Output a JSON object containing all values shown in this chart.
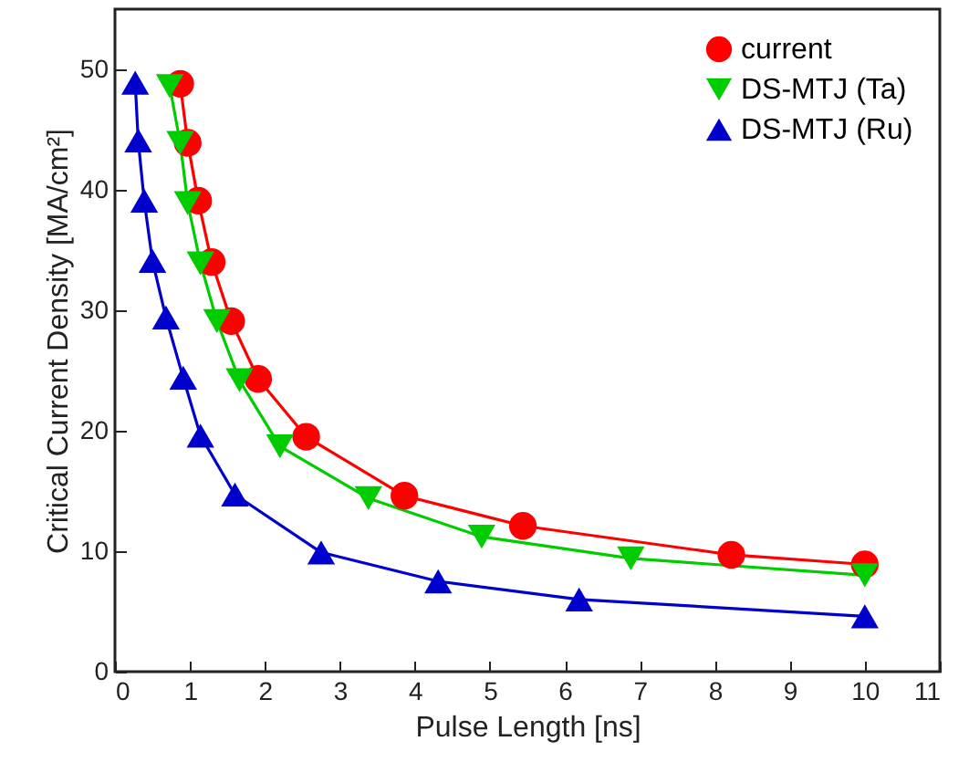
{
  "chart_data": {
    "type": "line",
    "xlabel": "Pulse Length [ns]",
    "ylabel": "Critical Current Density [MA/cm²]",
    "xlim": [
      0,
      11
    ],
    "xticks": [
      0,
      1,
      2,
      3,
      4,
      5,
      6,
      7,
      8,
      9,
      10,
      11
    ],
    "ylim": [
      0,
      55
    ],
    "yticks": [
      0,
      10,
      20,
      30,
      40,
      50
    ],
    "grid": false,
    "legend": "top right",
    "line_style": "solid",
    "series": [
      {
        "name": "current",
        "color": "#ff0000",
        "marker": "circle",
        "x": [
          0.87,
          0.97,
          1.11,
          1.29,
          1.55,
          1.91,
          2.55,
          3.86,
          5.44,
          8.22,
          10
        ],
        "values": [
          48.8,
          43.9,
          39.1,
          34.0,
          29.1,
          24.3,
          19.5,
          14.6,
          12.1,
          9.7,
          8.9
        ]
      },
      {
        "name": "DS-MTJ (Ta)",
        "color": "#00cc00",
        "marker": "triangle-down",
        "x": [
          0.73,
          0.87,
          0.97,
          1.14,
          1.36,
          1.66,
          2.2,
          3.38,
          4.89,
          6.88,
          10
        ],
        "values": [
          48.6,
          43.9,
          38.9,
          33.9,
          29.1,
          24.2,
          18.7,
          14.4,
          11.2,
          9.4,
          8.0
        ]
      },
      {
        "name": "DS-MTJ (Ru)",
        "color": "#0000cc",
        "marker": "triangle",
        "x": [
          0.27,
          0.31,
          0.39,
          0.5,
          0.68,
          0.91,
          1.14,
          1.6,
          2.75,
          4.31,
          6.19,
          10
        ],
        "values": [
          48.9,
          44.1,
          39.1,
          34.1,
          29.4,
          24.4,
          19.6,
          14.7,
          9.9,
          7.5,
          6.0,
          4.6
        ]
      }
    ]
  }
}
